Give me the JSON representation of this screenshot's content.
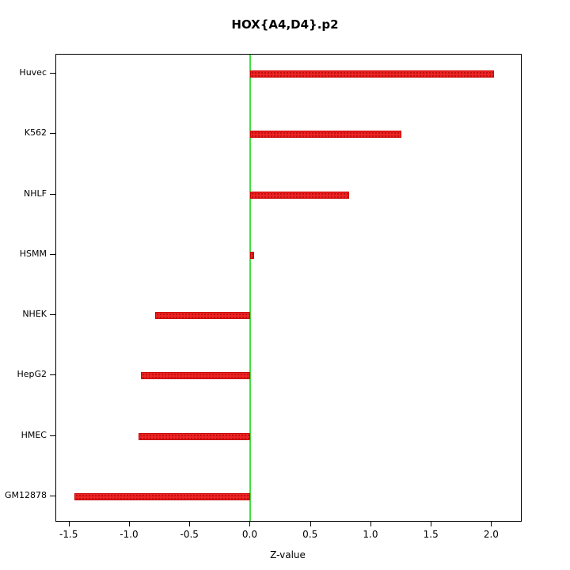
{
  "chart_data": {
    "type": "bar",
    "orientation": "horizontal",
    "title": "HOX{A4,D4}.p2",
    "xlabel": "Z-value",
    "categories": [
      "Huvec",
      "K562",
      "NHLF",
      "HSMM",
      "NHEK",
      "HepG2",
      "HMEC",
      "GM12878"
    ],
    "values": [
      2.02,
      1.25,
      0.82,
      0.03,
      -0.79,
      -0.91,
      -0.93,
      -1.46
    ],
    "x_ticks": [
      -1.5,
      -1.0,
      -0.5,
      0.0,
      0.5,
      1.0,
      1.5,
      2.0
    ],
    "x_tick_labels": [
      "-1.5",
      "-1.0",
      "-0.5",
      "0.0",
      "0.5",
      "1.0",
      "1.5",
      "2.0"
    ],
    "xlim": [
      -1.61,
      2.24
    ],
    "bar_color": "#ee2222",
    "zero_line_color": "#44dd44",
    "grid": false,
    "legend": false
  }
}
